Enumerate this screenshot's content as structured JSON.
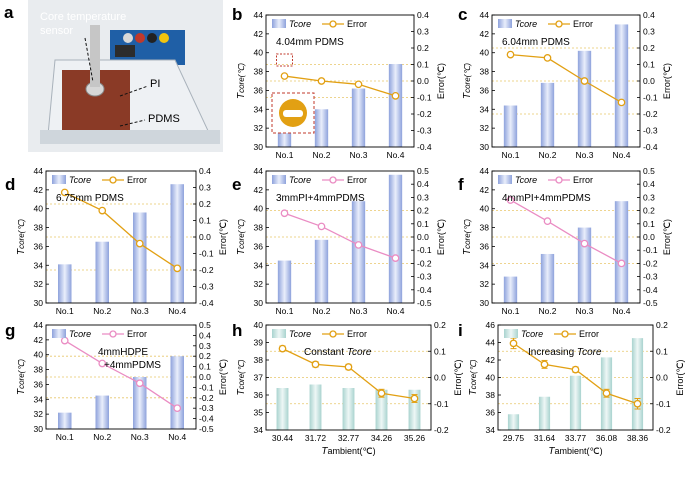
{
  "photo": {
    "letter": "a",
    "label_core_line1": "Core temperature",
    "label_core_line2": "sensor",
    "label_pi": "PI",
    "label_pdms": "PDMS"
  },
  "legend": {
    "tcore_prefix": "T",
    "tcore_suffix": "core",
    "error": "Error"
  },
  "axis_titles": {
    "left_prefix": "T",
    "left_suffix": "core(℃)",
    "right": "Error(℃)",
    "bottom_prefix": "T",
    "bottom_suffix": "ambient(℃)"
  },
  "colors": {
    "bar_blue": "#8ea2dc",
    "bar_teal": "#a9d3cf",
    "line_orange": "#e2a013",
    "line_pink": "#ea8cc3",
    "grid": "#e8c66a"
  },
  "chart_data": [
    {
      "id": "b",
      "type": "bar+line",
      "letter": "b",
      "title": "4.04mm PDMS",
      "title_italic_word": "",
      "categories": [
        "No.1",
        "No.2",
        "No.3",
        "No.4"
      ],
      "series": [
        {
          "name": "Tcore",
          "axis": "left",
          "values": [
            32.0,
            34.0,
            36.2,
            38.8
          ]
        },
        {
          "name": "Error",
          "axis": "right",
          "values": [
            0.03,
            0.0,
            -0.02,
            -0.09
          ]
        }
      ],
      "ylim": [
        30,
        44
      ],
      "yticks": [
        30,
        32,
        34,
        36,
        38,
        40,
        42,
        44
      ],
      "y2lim": [
        -0.4,
        0.4
      ],
      "y2ticks": [
        -0.4,
        -0.3,
        -0.2,
        -0.1,
        0.0,
        0.1,
        0.2,
        0.3,
        0.4
      ],
      "line_color": "orange",
      "bar_color": "blue",
      "grid": [
        0.1,
        0.0,
        -0.1
      ],
      "inset_icon": true
    },
    {
      "id": "c",
      "type": "bar+line",
      "letter": "c",
      "title": "6.04mm PDMS",
      "title_italic_word": "",
      "categories": [
        "No.1",
        "No.2",
        "No.3",
        "No.4"
      ],
      "series": [
        {
          "name": "Tcore",
          "axis": "left",
          "values": [
            34.4,
            36.8,
            40.2,
            43.0
          ]
        },
        {
          "name": "Error",
          "axis": "right",
          "values": [
            0.16,
            0.14,
            0.0,
            -0.13
          ]
        }
      ],
      "ylim": [
        30,
        44
      ],
      "yticks": [
        30,
        32,
        34,
        36,
        38,
        40,
        42,
        44
      ],
      "y2lim": [
        -0.4,
        0.4
      ],
      "y2ticks": [
        -0.4,
        -0.3,
        -0.2,
        -0.1,
        0.0,
        0.1,
        0.2,
        0.3,
        0.4
      ],
      "line_color": "orange",
      "bar_color": "blue",
      "grid": [
        0.2,
        0.0,
        -0.2
      ]
    },
    {
      "id": "d",
      "type": "bar+line",
      "letter": "d",
      "title": "6.75mm PDMS",
      "title_italic_word": "",
      "categories": [
        "No.1",
        "No.2",
        "No.3",
        "No.4"
      ],
      "series": [
        {
          "name": "Tcore",
          "axis": "left",
          "values": [
            34.1,
            36.5,
            39.6,
            42.6
          ]
        },
        {
          "name": "Error",
          "axis": "right",
          "values": [
            0.27,
            0.16,
            -0.04,
            -0.19
          ]
        }
      ],
      "ylim": [
        30,
        44
      ],
      "yticks": [
        30,
        32,
        34,
        36,
        38,
        40,
        42,
        44
      ],
      "y2lim": [
        -0.4,
        0.4
      ],
      "y2ticks": [
        -0.4,
        -0.3,
        -0.2,
        -0.1,
        0.0,
        0.1,
        0.2,
        0.3,
        0.4
      ],
      "line_color": "orange",
      "bar_color": "blue",
      "grid": [
        0.2,
        0.0,
        -0.2
      ]
    },
    {
      "id": "e",
      "type": "bar+line",
      "letter": "e",
      "title": "3mmPI+4mmPDMS",
      "title_italic_word": "",
      "categories": [
        "No.1",
        "No.2",
        "No.3",
        "No.4"
      ],
      "series": [
        {
          "name": "Tcore",
          "axis": "left",
          "values": [
            34.5,
            36.7,
            40.8,
            43.6
          ]
        },
        {
          "name": "Error",
          "axis": "right",
          "values": [
            0.18,
            0.08,
            -0.06,
            -0.16
          ]
        }
      ],
      "ylim": [
        30,
        44
      ],
      "yticks": [
        30,
        32,
        34,
        36,
        38,
        40,
        42,
        44
      ],
      "y2lim": [
        -0.5,
        0.5
      ],
      "y2ticks": [
        -0.5,
        -0.4,
        -0.3,
        -0.2,
        -0.1,
        0.0,
        0.1,
        0.2,
        0.3,
        0.4,
        0.5
      ],
      "line_color": "pink",
      "bar_color": "blue",
      "grid": [
        0.2,
        0.0,
        -0.2
      ]
    },
    {
      "id": "f",
      "type": "bar+line",
      "letter": "f",
      "title": "4mmPI+4mmPDMS",
      "title_italic_word": "",
      "categories": [
        "No.1",
        "No.2",
        "No.3",
        "No.4"
      ],
      "series": [
        {
          "name": "Tcore",
          "axis": "left",
          "values": [
            32.8,
            35.2,
            38.0,
            40.8
          ]
        },
        {
          "name": "Error",
          "axis": "right",
          "values": [
            0.28,
            0.12,
            -0.05,
            -0.2
          ]
        }
      ],
      "ylim": [
        30,
        44
      ],
      "yticks": [
        30,
        32,
        34,
        36,
        38,
        40,
        42,
        44
      ],
      "y2lim": [
        -0.5,
        0.5
      ],
      "y2ticks": [
        -0.5,
        -0.4,
        -0.3,
        -0.2,
        -0.1,
        0.0,
        0.1,
        0.2,
        0.3,
        0.4,
        0.5
      ],
      "line_color": "pink",
      "bar_color": "blue",
      "grid": [
        0.2,
        0.0,
        -0.2
      ]
    },
    {
      "id": "g",
      "type": "bar+line",
      "letter": "g",
      "title": "4mmHDPE",
      "title2": "+4mmPDMS",
      "title_italic_word": "",
      "categories": [
        "No.1",
        "No.2",
        "No.3",
        "No.4"
      ],
      "series": [
        {
          "name": "Tcore",
          "axis": "left",
          "values": [
            32.2,
            34.5,
            37.0,
            39.8
          ]
        },
        {
          "name": "Error",
          "axis": "right",
          "values": [
            0.35,
            0.13,
            -0.06,
            -0.3
          ]
        }
      ],
      "ylim": [
        30,
        44
      ],
      "yticks": [
        30,
        32,
        34,
        36,
        38,
        40,
        42,
        44
      ],
      "y2lim": [
        -0.5,
        0.5
      ],
      "y2ticks": [
        -0.5,
        -0.4,
        -0.3,
        -0.2,
        -0.1,
        0.0,
        0.1,
        0.2,
        0.3,
        0.4,
        0.5
      ],
      "line_color": "pink",
      "bar_color": "blue",
      "grid": [
        0.2,
        0.0,
        -0.2
      ]
    },
    {
      "id": "h",
      "type": "bar+line",
      "letter": "h",
      "title": "Constant ",
      "title_italic_word": "Tcore",
      "categories": [
        "30.44",
        "31.72",
        "32.77",
        "34.26",
        "35.26"
      ],
      "series": [
        {
          "name": "Tcore",
          "axis": "left",
          "values": [
            36.4,
            36.6,
            36.4,
            36.3,
            36.3
          ]
        },
        {
          "name": "Error",
          "axis": "right",
          "values": [
            0.11,
            0.05,
            0.04,
            -0.06,
            -0.08
          ],
          "err": [
            0.01,
            0.01,
            0.01,
            0.015,
            0.015
          ]
        }
      ],
      "ylim": [
        34,
        40
      ],
      "yticks": [
        34,
        35,
        36,
        37,
        38,
        39,
        40
      ],
      "y2lim": [
        -0.2,
        0.2
      ],
      "y2ticks": [
        -0.2,
        -0.1,
        0.0,
        0.1,
        0.2
      ],
      "xlabel_ambient": true,
      "line_color": "orange",
      "bar_color": "teal",
      "grid": [
        0.1,
        0.0,
        -0.1
      ]
    },
    {
      "id": "i",
      "type": "bar+line",
      "letter": "i",
      "title": "Increasing ",
      "title_italic_word": "Tcore",
      "categories": [
        "29.75",
        "31.64",
        "33.77",
        "36.08",
        "38.36"
      ],
      "series": [
        {
          "name": "Tcore",
          "axis": "left",
          "values": [
            35.8,
            37.8,
            40.2,
            42.3,
            44.5
          ]
        },
        {
          "name": "Error",
          "axis": "right",
          "values": [
            0.13,
            0.05,
            0.03,
            -0.06,
            -0.1
          ],
          "err": [
            0.02,
            0.015,
            0.01,
            0.015,
            0.02
          ]
        }
      ],
      "ylim": [
        34,
        46
      ],
      "yticks": [
        34,
        36,
        38,
        40,
        42,
        44,
        46
      ],
      "y2lim": [
        -0.2,
        0.2
      ],
      "y2ticks": [
        -0.2,
        -0.1,
        0.0,
        0.1,
        0.2
      ],
      "xlabel_ambient": true,
      "line_color": "orange",
      "bar_color": "teal",
      "grid": [
        0.1,
        0.0,
        -0.1
      ]
    }
  ]
}
